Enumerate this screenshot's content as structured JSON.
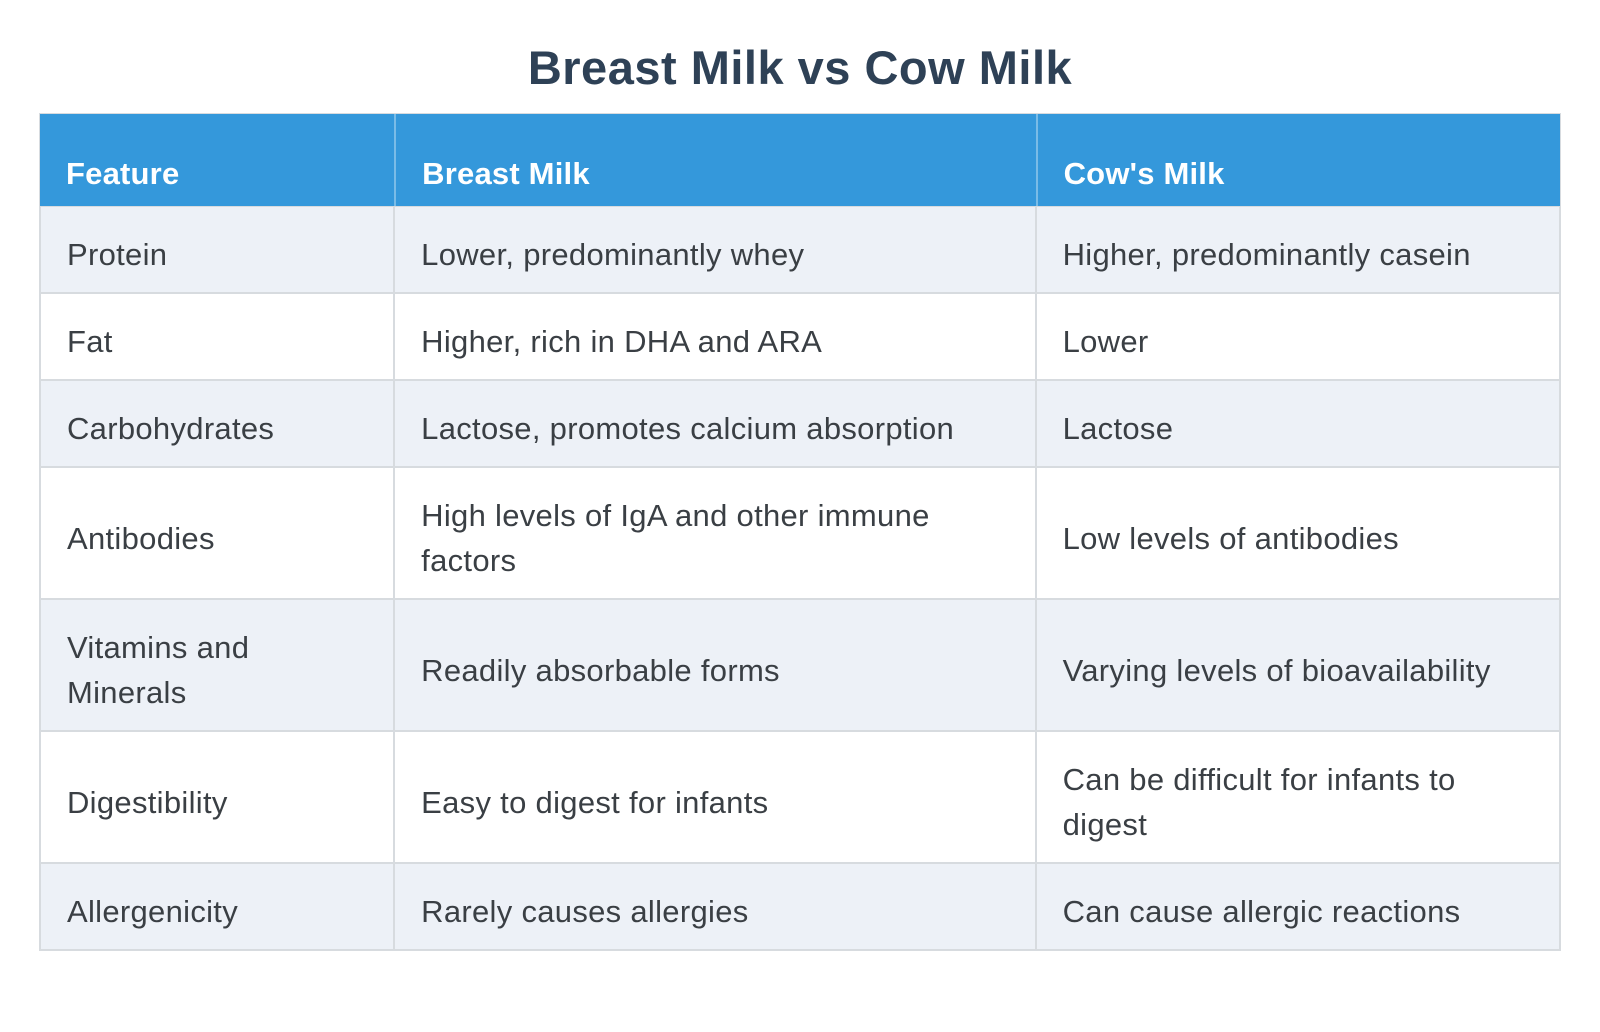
{
  "page": {
    "title": "Breast Milk vs Cow Milk"
  },
  "chart_data": {
    "type": "table",
    "title": "Breast Milk vs Cow Milk",
    "columns": [
      "Feature",
      "Breast Milk",
      "Cow's Milk"
    ],
    "rows": [
      [
        "Protein",
        "Lower, predominantly whey",
        "Higher, predominantly casein"
      ],
      [
        "Fat",
        "Higher, rich in DHA and ARA",
        "Lower"
      ],
      [
        "Carbohydrates",
        "Lactose, promotes calcium absorption",
        "Lactose"
      ],
      [
        "Antibodies",
        "High levels of IgA and other immune factors",
        "Low levels of antibodies"
      ],
      [
        "Vitamins and Minerals",
        "Readily absorbable forms",
        "Varying levels of bioavailability"
      ],
      [
        "Digestibility",
        "Easy to digest for infants",
        "Can be difficult for infants to digest"
      ],
      [
        "Allergenicity",
        "Rarely causes allergies",
        "Can cause allergic reactions"
      ]
    ]
  },
  "colors": {
    "header_bg": "#3498db",
    "header_text": "#ffffff",
    "alt_row_bg": "#edf1f7",
    "border": "#d7dbdf",
    "body_text": "#3a3f44",
    "title_text": "#2e4156"
  }
}
